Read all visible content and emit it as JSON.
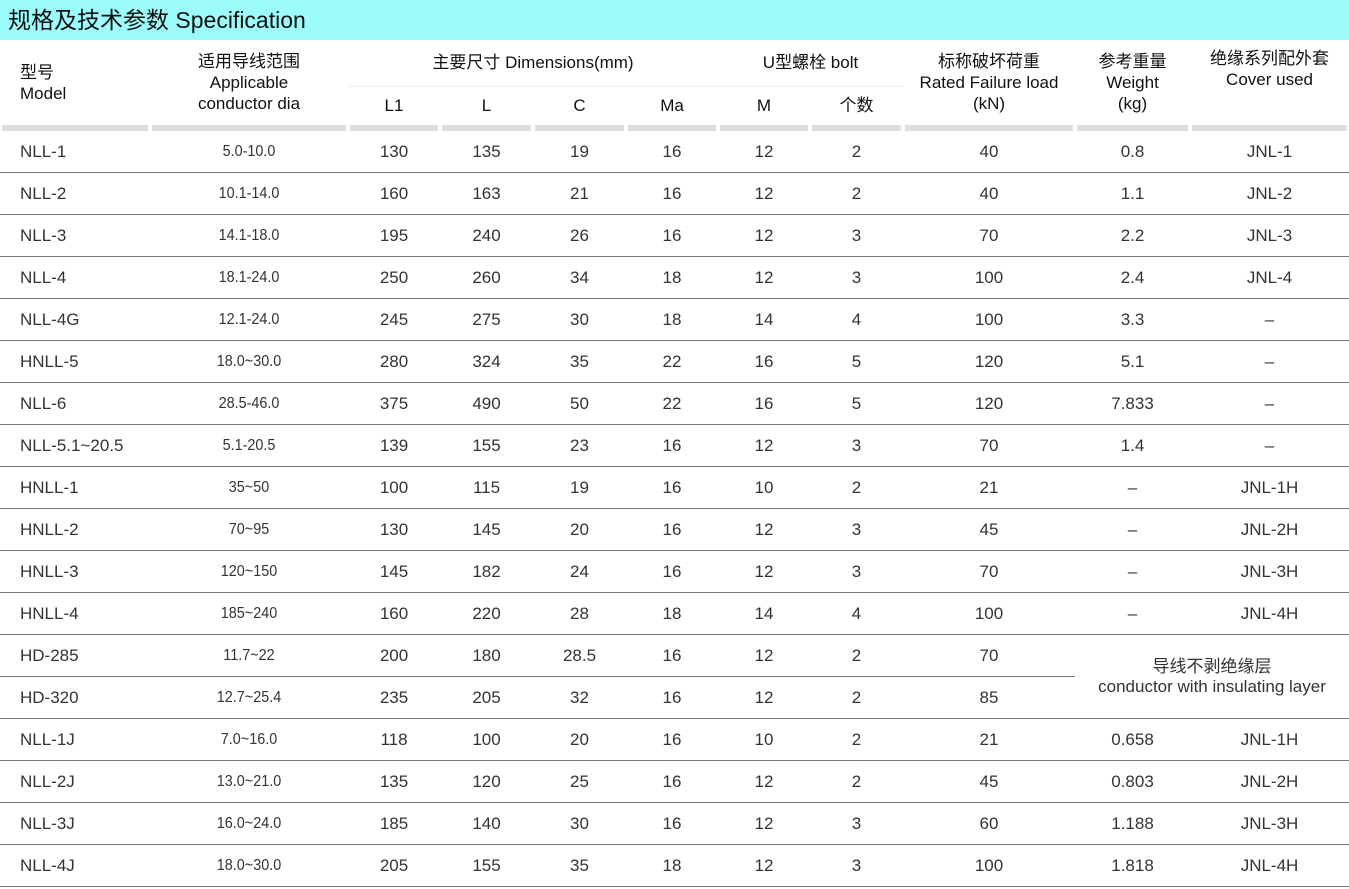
{
  "title": "规格及技术参数 Specification",
  "headers": {
    "model_cn": "型号",
    "model_en": "Model",
    "dia_cn": "适用导线范围",
    "dia_en1": "Applicable",
    "dia_en2": "conductor dia",
    "dims": "主要尺寸 Dimensions(mm)",
    "L1": "L1",
    "L": "L",
    "C": "C",
    "Ma": "Ma",
    "bolt": "U型螺栓 bolt",
    "M": "M",
    "count": "个数",
    "load_cn": "标称破坏荷重",
    "load_en": "Rated Failure load",
    "load_unit": "(kN)",
    "weight_cn": "参考重量",
    "weight_en": "Weight",
    "weight_unit": "(kg)",
    "cover_cn": "绝缘系列配外套",
    "cover_en": "Cover used"
  },
  "rows": [
    [
      "NLL-1",
      "5.0-10.0",
      "130",
      "135",
      "19",
      "16",
      "12",
      "2",
      "40",
      "0.8",
      "JNL-1"
    ],
    [
      "NLL-2",
      "10.1-14.0",
      "160",
      "163",
      "21",
      "16",
      "12",
      "2",
      "40",
      "1.1",
      "JNL-2"
    ],
    [
      "NLL-3",
      "14.1-18.0",
      "195",
      "240",
      "26",
      "16",
      "12",
      "3",
      "70",
      "2.2",
      "JNL-3"
    ],
    [
      "NLL-4",
      "18.1-24.0",
      "250",
      "260",
      "34",
      "18",
      "12",
      "3",
      "100",
      "2.4",
      "JNL-4"
    ],
    [
      "NLL-4G",
      "12.1-24.0",
      "245",
      "275",
      "30",
      "18",
      "14",
      "4",
      "100",
      "3.3",
      "–"
    ],
    [
      "HNLL-5",
      "18.0~30.0",
      "280",
      "324",
      "35",
      "22",
      "16",
      "5",
      "120",
      "5.1",
      "–"
    ],
    [
      "NLL-6",
      "28.5-46.0",
      "375",
      "490",
      "50",
      "22",
      "16",
      "5",
      "120",
      "7.833",
      "–"
    ],
    [
      "NLL-5.1~20.5",
      "5.1-20.5",
      "139",
      "155",
      "23",
      "16",
      "12",
      "3",
      "70",
      "1.4",
      "–"
    ],
    [
      "HNLL-1",
      "35~50",
      "100",
      "115",
      "19",
      "16",
      "10",
      "2",
      "21",
      "–",
      "JNL-1H"
    ],
    [
      "HNLL-2",
      "70~95",
      "130",
      "145",
      "20",
      "16",
      "12",
      "3",
      "45",
      "–",
      "JNL-2H"
    ],
    [
      "HNLL-3",
      "120~150",
      "145",
      "182",
      "24",
      "16",
      "12",
      "3",
      "70",
      "–",
      "JNL-3H"
    ],
    [
      "HNLL-4",
      "185~240",
      "160",
      "220",
      "28",
      "18",
      "14",
      "4",
      "100",
      "–",
      "JNL-4H"
    ],
    [
      "HD-285",
      "11.7~22",
      "200",
      "180",
      "28.5",
      "16",
      "12",
      "2",
      "70"
    ],
    [
      "HD-320",
      "12.7~25.4",
      "235",
      "205",
      "32",
      "16",
      "12",
      "2",
      "85"
    ],
    [
      "NLL-1J",
      "7.0~16.0",
      "118",
      "100",
      "20",
      "16",
      "10",
      "2",
      "21",
      "0.658",
      "JNL-1H"
    ],
    [
      "NLL-2J",
      "13.0~21.0",
      "135",
      "120",
      "25",
      "16",
      "12",
      "2",
      "45",
      "0.803",
      "JNL-2H"
    ],
    [
      "NLL-3J",
      "16.0~24.0",
      "185",
      "140",
      "30",
      "16",
      "12",
      "3",
      "60",
      "1.188",
      "JNL-3H"
    ],
    [
      "NLL-4J",
      "18.0~30.0",
      "205",
      "155",
      "35",
      "18",
      "12",
      "3",
      "100",
      "1.818",
      "JNL-4H"
    ]
  ],
  "merged_note": {
    "cn": "导线不剥绝缘层",
    "en": "conductor with insulating layer"
  }
}
